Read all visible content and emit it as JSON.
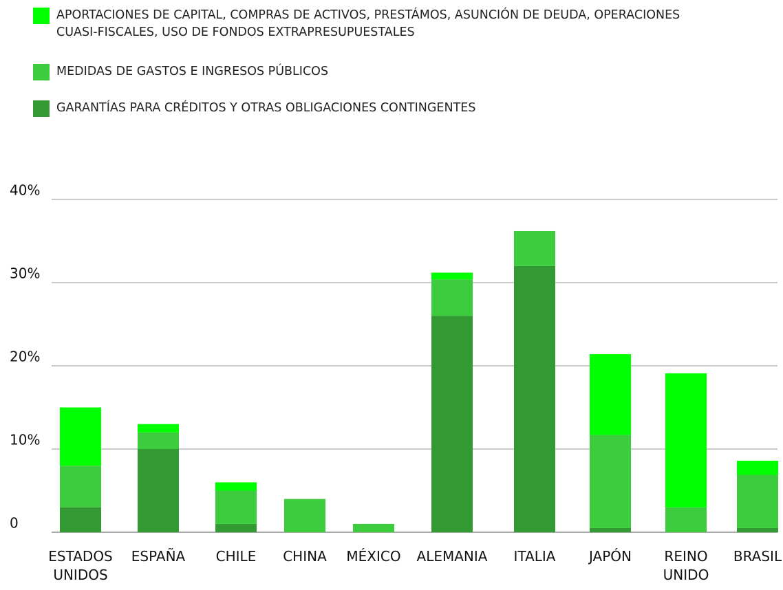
{
  "chart_data": {
    "type": "stacked_bar",
    "categories": [
      "ESTADOS UNIDOS",
      "ESPAÑA",
      "CHILE",
      "CHINA",
      "MÉXICO",
      "ALEMANIA",
      "ITALIA",
      "JAPÓN",
      "REINO UNIDO",
      "BRASIL"
    ],
    "series": [
      {
        "name": "GARANTÍAS PARA CRÉDITOS Y OTRAS OBLIGACIONES CONTINGENTES",
        "color": "#339933",
        "values": [
          3,
          10,
          1,
          0,
          0,
          26,
          32,
          0.5,
          0,
          0.5
        ]
      },
      {
        "name": "MEDIDAS DE GASTOS E INGRESOS PÚBLICOS",
        "color": "#3dcc3d",
        "values": [
          5,
          2,
          4,
          4,
          1,
          4.4,
          4.2,
          11.2,
          3,
          6.4
        ]
      },
      {
        "name": "APORTACIONES DE CAPITAL, COMPRAS DE ACTIVOS, PRESTÁMOS, ASUNCIÓN DE DEUDA, OPERACIONES CUASI-FISCALES, USO DE FONDOS EXTRAPRESUPUESTALES",
        "color": "#00ff00",
        "values": [
          7,
          1,
          1,
          0,
          0,
          0.8,
          0,
          9.7,
          16.1,
          1.7
        ]
      }
    ],
    "ylim": [
      0,
      40
    ],
    "yticks": [
      0,
      {
        "value": 10,
        "label": "10%"
      },
      {
        "value": 20,
        "label": "20%"
      },
      {
        "value": 30,
        "label": "30%"
      },
      {
        "value": 40,
        "label": "40%"
      }
    ],
    "grid": true
  }
}
